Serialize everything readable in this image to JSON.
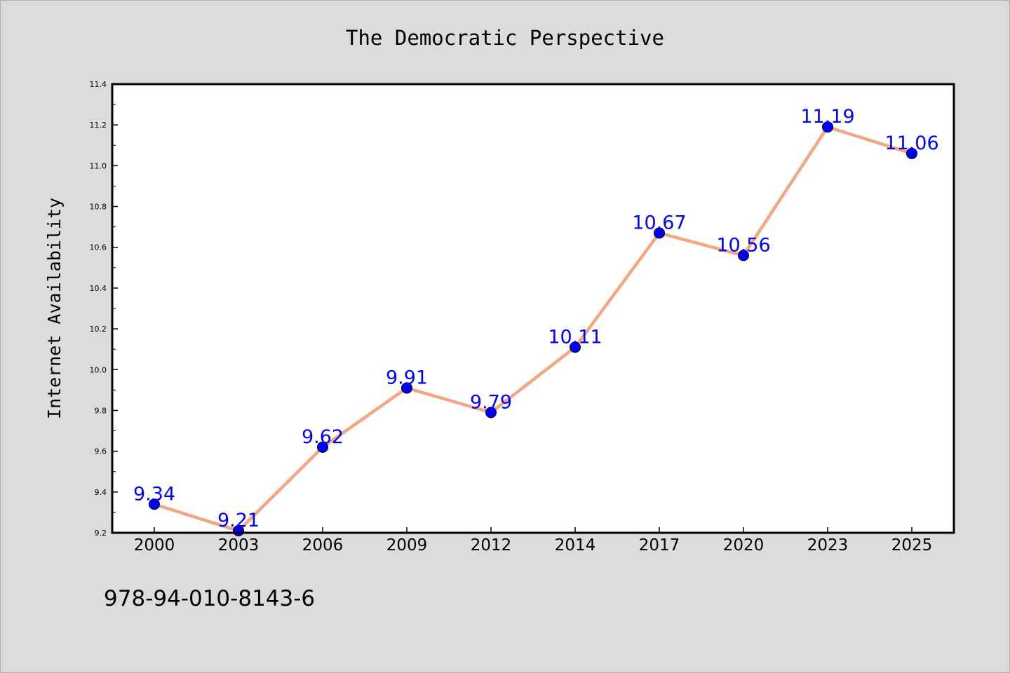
{
  "chart_data": {
    "type": "line",
    "title": "The Democratic Perspective",
    "xlabel": "",
    "ylabel": "Internet Availability",
    "categories": [
      "2000",
      "2003",
      "2006",
      "2009",
      "2012",
      "2014",
      "2017",
      "2020",
      "2023",
      "2025"
    ],
    "series": [
      {
        "values": [
          9.34,
          9.21,
          9.62,
          9.91,
          9.79,
          10.11,
          10.67,
          10.56,
          11.19,
          11.06
        ],
        "data_labels": [
          "9.34",
          "9.21",
          "9.62",
          "9.91",
          "9.79",
          "10.11",
          "10.67",
          "10.56",
          "11.19",
          "11.06"
        ],
        "line_color": "#f4a582",
        "marker_color": "#0000ff",
        "label_color": "#0000ff"
      }
    ],
    "ylim": [
      9.2,
      11.4
    ],
    "yticks": [
      "9.2",
      "9.4",
      "9.6",
      "9.8",
      "10.0",
      "10.2",
      "10.4",
      "10.6",
      "10.8",
      "11.0",
      "11.2",
      "11.4"
    ],
    "grid": false,
    "legend": "none",
    "background_color": "#dcdcdc",
    "plot_background_color": "#ffffff"
  },
  "footer": {
    "isbn": "978-94-010-8143-6"
  }
}
